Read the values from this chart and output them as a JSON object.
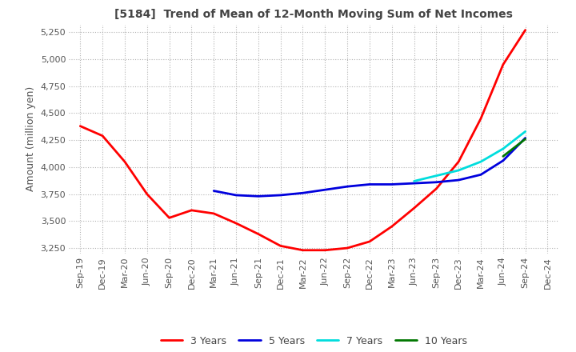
{
  "title": "[5184]  Trend of Mean of 12-Month Moving Sum of Net Incomes",
  "ylabel": "Amount (million yen)",
  "ylim": [
    3200,
    5320
  ],
  "yticks": [
    3250,
    3500,
    3750,
    4000,
    4250,
    4500,
    4750,
    5000,
    5250
  ],
  "background_color": "#ffffff",
  "plot_bg_color": "#ffffff",
  "grid_color": "#aaaaaa",
  "x_labels": [
    "Sep-19",
    "Dec-19",
    "Mar-20",
    "Jun-20",
    "Sep-20",
    "Dec-20",
    "Mar-21",
    "Jun-21",
    "Sep-21",
    "Dec-21",
    "Mar-22",
    "Jun-22",
    "Sep-22",
    "Dec-22",
    "Mar-23",
    "Jun-23",
    "Sep-23",
    "Dec-23",
    "Mar-24",
    "Jun-24",
    "Sep-24",
    "Dec-24"
  ],
  "series_order": [
    "3 Years",
    "5 Years",
    "7 Years",
    "10 Years"
  ],
  "series": {
    "3 Years": {
      "color": "#ff0000",
      "values": [
        4380,
        4290,
        4050,
        3750,
        3530,
        3600,
        3570,
        3480,
        3380,
        3270,
        3230,
        3230,
        3250,
        3310,
        3450,
        3620,
        3800,
        4050,
        4450,
        4950,
        5270,
        null
      ]
    },
    "5 Years": {
      "color": "#0000dd",
      "values": [
        null,
        null,
        null,
        null,
        null,
        null,
        3780,
        3740,
        3730,
        3740,
        3760,
        3790,
        3820,
        3840,
        3840,
        3850,
        3860,
        3880,
        3930,
        4060,
        4270,
        null
      ]
    },
    "7 Years": {
      "color": "#00dddd",
      "values": [
        null,
        null,
        null,
        null,
        null,
        null,
        null,
        null,
        null,
        null,
        null,
        null,
        null,
        null,
        null,
        3870,
        3920,
        3970,
        4050,
        4170,
        4330,
        null
      ]
    },
    "10 Years": {
      "color": "#007700",
      "values": [
        null,
        null,
        null,
        null,
        null,
        null,
        null,
        null,
        null,
        null,
        null,
        null,
        null,
        null,
        null,
        null,
        null,
        null,
        null,
        4100,
        4260,
        null
      ]
    }
  }
}
